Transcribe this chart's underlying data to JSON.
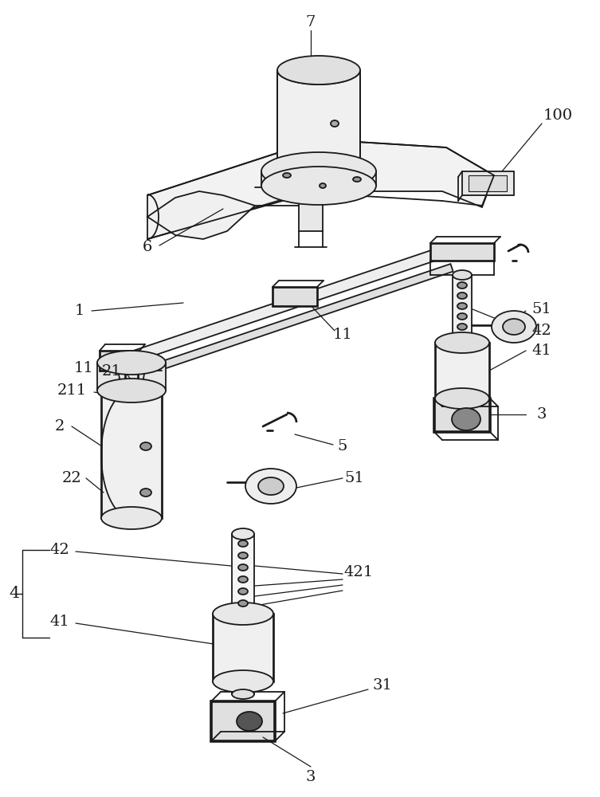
{
  "bg_color": "#ffffff",
  "lc": "#1a1a1a",
  "lw": 1.3,
  "fig_w": 7.53,
  "fig_h": 10.0
}
